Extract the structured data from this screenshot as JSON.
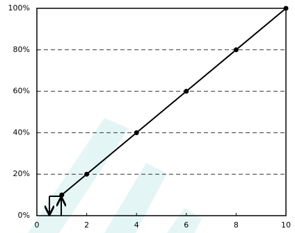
{
  "chart_data": {
    "type": "line",
    "x": [
      1,
      2,
      4,
      6,
      8,
      10
    ],
    "series": [
      {
        "color": "#000000",
        "values": [
          10,
          20,
          40,
          60,
          80,
          100
        ]
      }
    ],
    "xlim": [
      0,
      10
    ],
    "xticks": [
      0,
      2,
      4,
      6,
      8,
      10
    ],
    "ylim": [
      0,
      100
    ],
    "yticks": [
      {
        "value": 0,
        "label": "0%"
      },
      {
        "value": 20,
        "label": "20%"
      },
      {
        "value": 40,
        "label": "40%"
      },
      {
        "value": 60,
        "label": "60%"
      },
      {
        "value": 80,
        "label": "80%"
      },
      {
        "value": 100,
        "label": "100%"
      }
    ],
    "grid": true
  }
}
